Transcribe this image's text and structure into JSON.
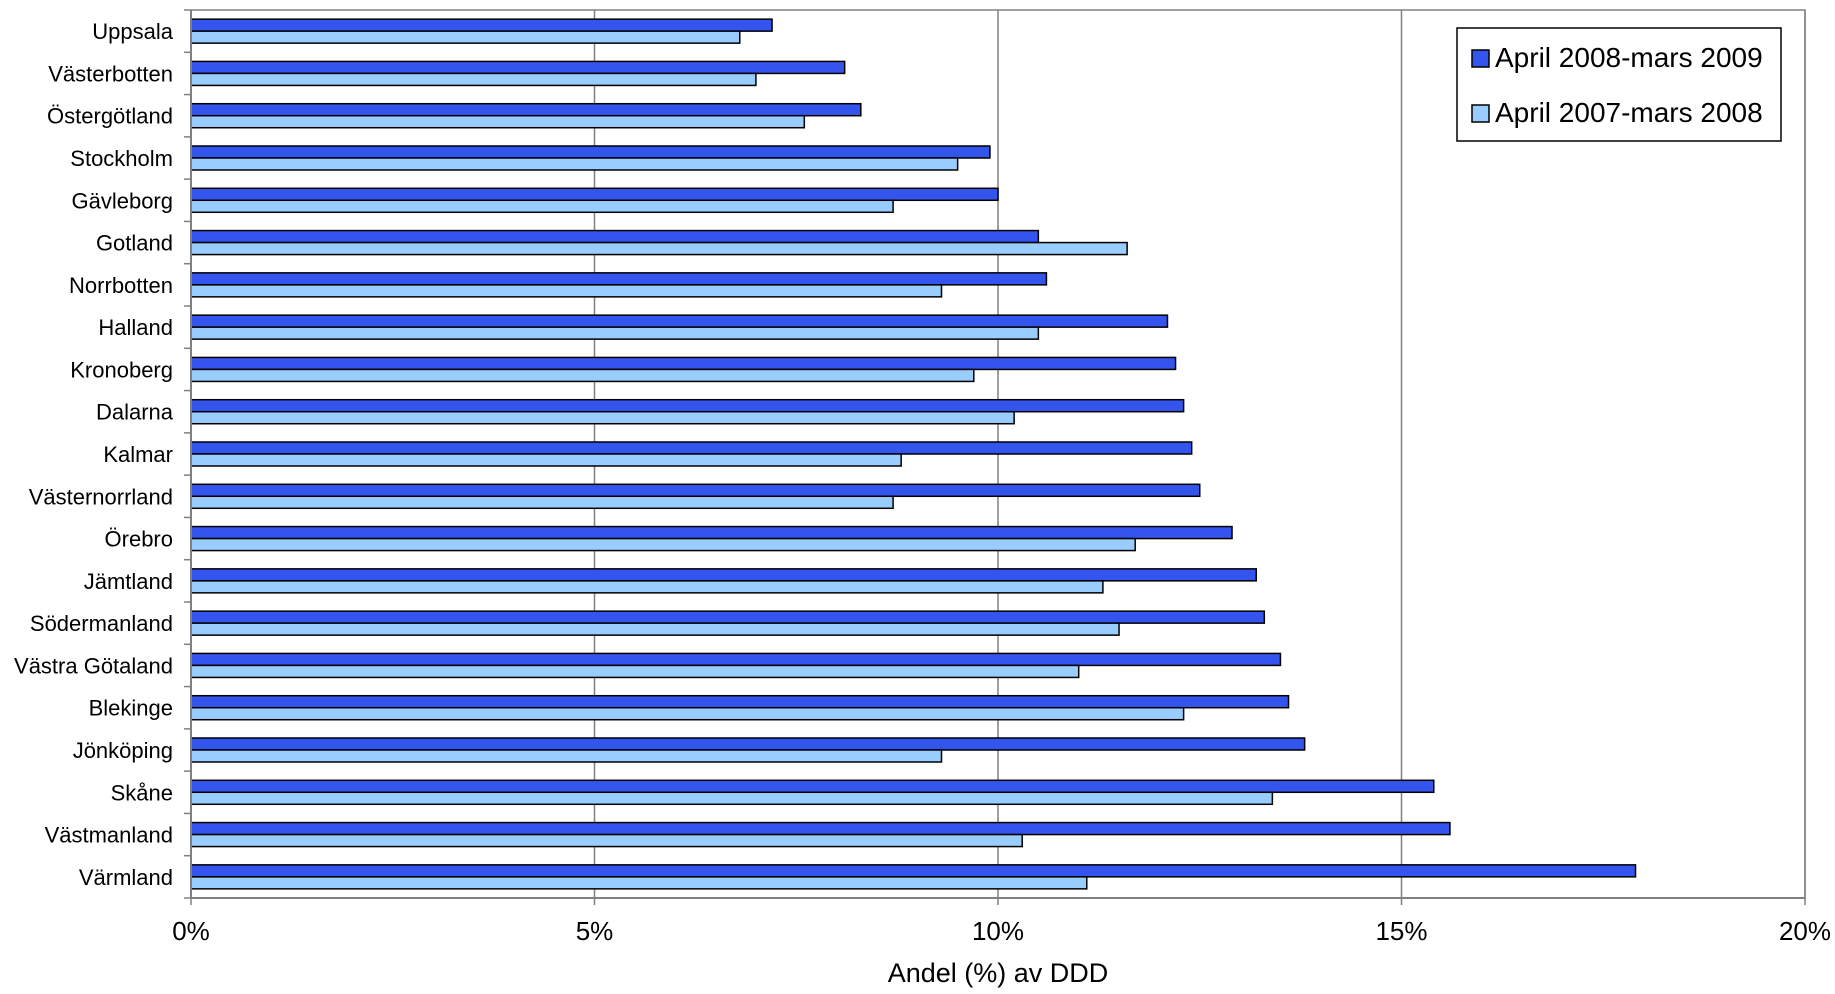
{
  "chart_data": {
    "type": "bar",
    "orientation": "horizontal",
    "xlabel": "Andel (%) av DDD",
    "ylabel": "",
    "title": "",
    "xlim": [
      0,
      20
    ],
    "x_tick_labels": [
      "0%",
      "5%",
      "10%",
      "15%",
      "20%"
    ],
    "x_tick_values": [
      0,
      5,
      10,
      15,
      20
    ],
    "grid": "vertical gridlines at 5% intervals",
    "legend_position": "top-right",
    "categories": [
      "Uppsala",
      "Västerbotten",
      "Östergötland",
      "Stockholm",
      "Gävleborg",
      "Gotland",
      "Norrbotten",
      "Halland",
      "Kronoberg",
      "Dalarna",
      "Kalmar",
      "Västernorrland",
      "Örebro",
      "Jämtland",
      "Södermanland",
      "Västra Götaland",
      "Blekinge",
      "Jönköping",
      "Skåne",
      "Västmanland",
      "Värmland"
    ],
    "series": [
      {
        "name": "April 2008-mars 2009",
        "color": "#3355ee",
        "values": [
          7.2,
          8.1,
          8.3,
          9.9,
          10.0,
          10.5,
          10.6,
          12.1,
          12.2,
          12.3,
          12.4,
          12.5,
          12.9,
          13.2,
          13.3,
          13.5,
          13.6,
          13.8,
          15.4,
          15.6,
          17.9
        ]
      },
      {
        "name": "April 2007-mars 2008",
        "color": "#99ccff",
        "values": [
          6.8,
          7.0,
          7.6,
          9.5,
          8.7,
          11.6,
          9.3,
          10.5,
          9.7,
          10.2,
          8.8,
          8.7,
          11.7,
          11.3,
          11.5,
          11.0,
          12.3,
          9.3,
          13.4,
          10.3,
          11.1
        ]
      }
    ]
  }
}
